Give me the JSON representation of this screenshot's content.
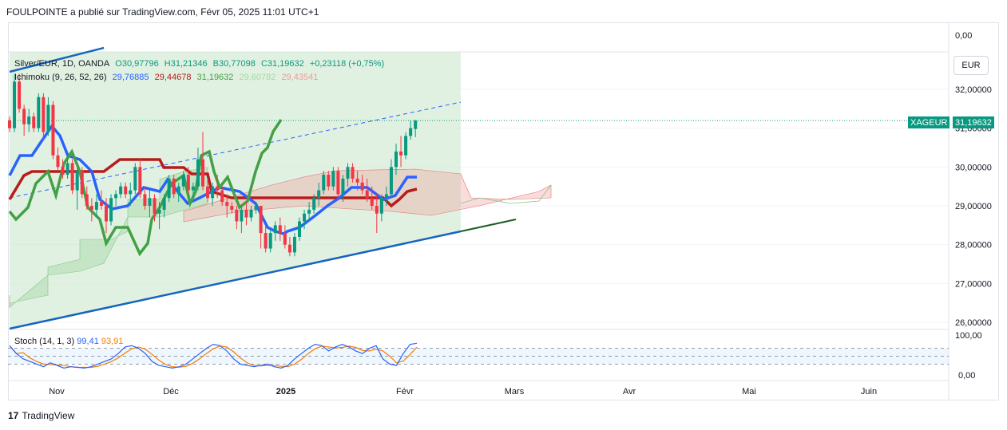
{
  "header": {
    "publisher_line": "FOULPOINTE a publié sur TradingView.com, Févr 05, 2025 11:01 UTC+1"
  },
  "legend": {
    "symbol": "Silver/EUR, 1D, OANDA",
    "o": "O30,97796",
    "h": "H31,21346",
    "b": "B30,77098",
    "c": "C31,19632",
    "change": "+0,23118 (+0,75%)",
    "ichimoku_label": "Ichimoku (9, 26, 52, 26)",
    "ichimoku_values": [
      "29,76885",
      "29,44678",
      "31,19632",
      "29,60782",
      "29,43541"
    ]
  },
  "stoch": {
    "label": "Stoch (14, 1, 3)",
    "k": "99,41",
    "d": "93,91"
  },
  "price_axis": {
    "currency": "EUR",
    "top_label": "0,00",
    "ticks": [
      "32,00000",
      "31,00000",
      "30,00000",
      "29,00000",
      "28,00000",
      "27,00000",
      "26,00000"
    ],
    "stoch_ticks": [
      "100,00",
      "0,00"
    ],
    "symbol_badge": "XAGEUR",
    "price_badge": "31,19632"
  },
  "time_axis": {
    "labels": [
      "Nov",
      "Déc",
      "2025",
      "Févr",
      "Mars",
      "Avr",
      "Mai",
      "Juin"
    ]
  },
  "colors": {
    "up": "#089981",
    "down": "#f23645",
    "tenkan": "#2962ff",
    "kijun": "#b71c1c",
    "chikou": "#43a047",
    "channel": "#1565c0",
    "stoch_k": "#2962ff",
    "stoch_d": "#f57c00"
  },
  "footer": {
    "brand": "TradingView"
  },
  "chart_data": {
    "type": "candlestick",
    "symbol": "XAGEUR",
    "y_range": [
      25.9,
      32.6
    ],
    "candles_ohlc_approx": [
      [
        31.2,
        31.3,
        30.9,
        31.0
      ],
      [
        31.0,
        32.4,
        30.9,
        32.2
      ],
      [
        32.2,
        32.4,
        31.4,
        31.5
      ],
      [
        31.5,
        31.6,
        30.8,
        31.1
      ],
      [
        31.1,
        31.5,
        30.9,
        31.3
      ],
      [
        31.3,
        31.4,
        30.9,
        31.0
      ],
      [
        31.0,
        31.9,
        30.9,
        31.8
      ],
      [
        31.8,
        31.9,
        30.7,
        30.9
      ],
      [
        30.9,
        31.8,
        30.8,
        31.6
      ],
      [
        31.6,
        31.7,
        30.2,
        30.3
      ],
      [
        30.3,
        30.5,
        29.9,
        30.0
      ],
      [
        30.0,
        30.2,
        29.7,
        29.8
      ],
      [
        29.8,
        30.3,
        29.7,
        30.1
      ],
      [
        30.1,
        30.2,
        29.3,
        29.4
      ],
      [
        29.4,
        30.0,
        28.9,
        29.9
      ],
      [
        29.9,
        30.0,
        29.2,
        29.3
      ],
      [
        29.3,
        29.5,
        28.9,
        29.0
      ],
      [
        29.0,
        29.2,
        28.6,
        28.9
      ],
      [
        28.9,
        29.3,
        28.7,
        29.1
      ],
      [
        29.1,
        29.4,
        28.9,
        29.0
      ],
      [
        29.0,
        29.2,
        28.3,
        28.6
      ],
      [
        28.6,
        29.3,
        28.5,
        29.2
      ],
      [
        29.2,
        29.4,
        29.0,
        29.3
      ],
      [
        29.3,
        29.6,
        29.2,
        29.5
      ],
      [
        29.5,
        29.6,
        29.2,
        29.3
      ],
      [
        29.3,
        29.6,
        29.0,
        29.4
      ],
      [
        29.4,
        30.1,
        29.3,
        30.0
      ],
      [
        30.0,
        30.2,
        29.2,
        29.3
      ],
      [
        29.3,
        29.5,
        28.9,
        29.0
      ],
      [
        29.0,
        29.4,
        28.7,
        29.2
      ],
      [
        29.2,
        29.3,
        28.6,
        28.8
      ],
      [
        28.8,
        29.1,
        28.4,
        28.9
      ],
      [
        28.9,
        29.3,
        28.7,
        29.2
      ],
      [
        29.2,
        29.8,
        29.1,
        29.7
      ],
      [
        29.7,
        29.8,
        29.2,
        29.3
      ],
      [
        29.3,
        29.6,
        29.1,
        29.5
      ],
      [
        29.5,
        29.9,
        29.4,
        29.8
      ],
      [
        29.8,
        30.0,
        29.3,
        29.4
      ],
      [
        29.4,
        29.6,
        29.2,
        29.5
      ],
      [
        29.5,
        30.5,
        29.4,
        30.2
      ],
      [
        30.2,
        30.9,
        29.4,
        29.5
      ],
      [
        29.5,
        29.7,
        29.1,
        29.2
      ],
      [
        29.2,
        29.6,
        29.0,
        29.5
      ],
      [
        29.5,
        29.8,
        29.2,
        29.4
      ],
      [
        29.4,
        29.5,
        29.0,
        29.1
      ],
      [
        29.1,
        29.3,
        28.7,
        29.0
      ],
      [
        29.0,
        29.1,
        28.8,
        28.9
      ],
      [
        28.9,
        29.0,
        28.4,
        28.6
      ],
      [
        28.6,
        29.0,
        28.3,
        28.9
      ],
      [
        28.9,
        29.1,
        28.5,
        28.7
      ],
      [
        28.7,
        29.0,
        28.6,
        28.9
      ],
      [
        28.9,
        29.1,
        28.8,
        29.0
      ],
      [
        29.0,
        28.9,
        27.9,
        28.3
      ],
      [
        28.3,
        28.5,
        27.8,
        27.9
      ],
      [
        27.9,
        28.4,
        27.8,
        28.3
      ],
      [
        28.3,
        28.6,
        28.1,
        28.5
      ],
      [
        28.5,
        28.7,
        28.1,
        28.3
      ],
      [
        28.3,
        28.5,
        27.9,
        28.0
      ],
      [
        28.0,
        28.2,
        27.7,
        27.8
      ],
      [
        27.8,
        28.3,
        27.7,
        28.2
      ],
      [
        28.2,
        28.7,
        28.1,
        28.6
      ],
      [
        28.6,
        28.9,
        28.4,
        28.8
      ],
      [
        28.8,
        29.1,
        28.6,
        28.9
      ],
      [
        28.9,
        29.3,
        28.8,
        29.2
      ],
      [
        29.2,
        29.6,
        29.0,
        29.4
      ],
      [
        29.4,
        29.9,
        29.3,
        29.8
      ],
      [
        29.8,
        29.9,
        29.4,
        29.5
      ],
      [
        29.5,
        30.0,
        29.4,
        29.9
      ],
      [
        29.9,
        30.0,
        29.2,
        29.3
      ],
      [
        29.3,
        29.8,
        29.1,
        29.7
      ],
      [
        29.7,
        30.1,
        29.5,
        30.0
      ],
      [
        30.0,
        30.1,
        29.6,
        29.7
      ],
      [
        29.7,
        29.9,
        29.4,
        29.6
      ],
      [
        29.6,
        29.8,
        29.3,
        29.4
      ],
      [
        29.4,
        29.7,
        29.1,
        29.2
      ],
      [
        29.2,
        29.5,
        28.9,
        29.0
      ],
      [
        29.0,
        29.3,
        28.3,
        28.8
      ],
      [
        28.8,
        29.3,
        28.6,
        29.2
      ],
      [
        29.2,
        29.5,
        29.0,
        29.3
      ],
      [
        29.3,
        30.2,
        29.2,
        30.0
      ],
      [
        30.0,
        30.6,
        29.8,
        30.4
      ],
      [
        30.4,
        30.8,
        30.0,
        30.3
      ],
      [
        30.3,
        30.9,
        30.2,
        30.8
      ],
      [
        30.8,
        31.2,
        30.7,
        31.0
      ],
      [
        30.98,
        31.21,
        30.77,
        31.2
      ]
    ],
    "ichimoku": {
      "tenkan": 29.76885,
      "kijun": 29.44678,
      "chikou": 31.19632,
      "senkou_a": 29.60782,
      "senkou_b": 29.43541
    },
    "stochastic": {
      "k": 99.41,
      "d": 93.91,
      "levels": [
        80,
        50,
        20
      ]
    }
  }
}
